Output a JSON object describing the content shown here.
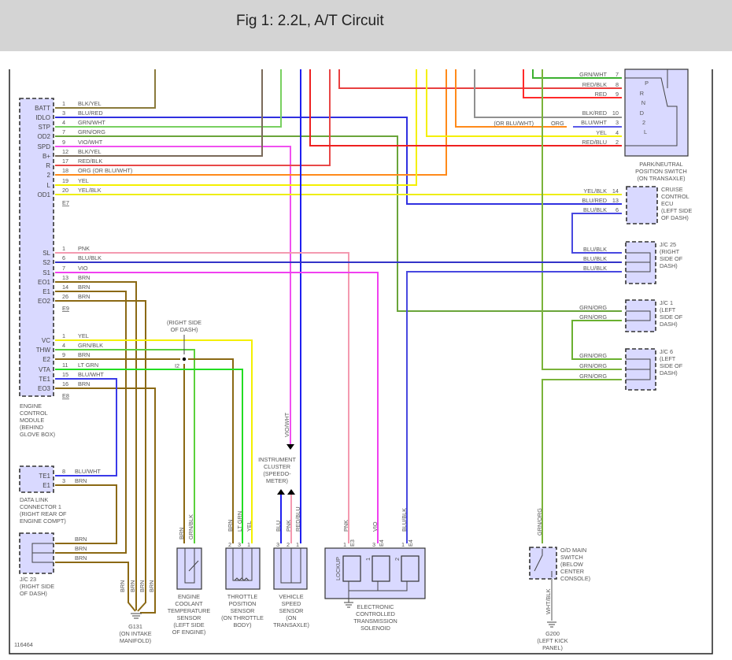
{
  "header": {
    "title": "Fig 1: 2.2L, A/T Circuit"
  },
  "figure_number": "116464",
  "ecu": {
    "label": [
      "ENGINE",
      "CONTROL",
      "MODULE",
      "(BEHIND",
      "GLOVE BOX)"
    ],
    "e7": {
      "connector": "E7",
      "pins": [
        {
          "name": "BATT",
          "pin": "1",
          "wire": "BLK/YEL"
        },
        {
          "name": "IDLO",
          "pin": "3",
          "wire": "BLU/RED"
        },
        {
          "name": "STP",
          "pin": "4",
          "wire": "GRN/WHT"
        },
        {
          "name": "OD2",
          "pin": "7",
          "wire": "GRN/ORG"
        },
        {
          "name": "SPD",
          "pin": "9",
          "wire": "VIO/WHT"
        },
        {
          "name": "B+",
          "pin": "12",
          "wire": "BLK/YEL"
        },
        {
          "name": "R",
          "pin": "17",
          "wire": "RED/BLK"
        },
        {
          "name": "2",
          "pin": "18",
          "wire": "ORG   (OR BLU/WHT)"
        },
        {
          "name": "L",
          "pin": "19",
          "wire": "YEL"
        },
        {
          "name": "OD1",
          "pin": "20",
          "wire": "YEL/BLK"
        }
      ]
    },
    "e9": {
      "connector": "E9",
      "pins": [
        {
          "name": "SL",
          "pin": "1",
          "wire": "PNK"
        },
        {
          "name": "S2",
          "pin": "6",
          "wire": "BLU/BLK"
        },
        {
          "name": "S1",
          "pin": "7",
          "wire": "VIO"
        },
        {
          "name": "EO1",
          "pin": "13",
          "wire": "BRN"
        },
        {
          "name": "E1",
          "pin": "14",
          "wire": "BRN"
        },
        {
          "name": "EO2",
          "pin": "26",
          "wire": "BRN"
        }
      ]
    },
    "e8": {
      "connector": "E8",
      "pins": [
        {
          "name": "VC",
          "pin": "1",
          "wire": "YEL"
        },
        {
          "name": "THW",
          "pin": "4",
          "wire": "GRN/BLK"
        },
        {
          "name": "E2",
          "pin": "9",
          "wire": "BRN"
        },
        {
          "name": "VTA",
          "pin": "11",
          "wire": "LT GRN"
        },
        {
          "name": "TE1",
          "pin": "15",
          "wire": "BLU/WHT"
        },
        {
          "name": "EO3",
          "pin": "16",
          "wire": "BRN"
        }
      ]
    }
  },
  "park_neutral_switch": {
    "label": [
      "PARK/NEUTRAL",
      "POSITION SWITCH",
      "(ON TRANSAXLE)"
    ],
    "pins": [
      {
        "pin": "7",
        "wire": "GRN/WHT"
      },
      {
        "pin": "8",
        "wire": "RED/BLK"
      },
      {
        "pin": "9",
        "wire": "RED"
      },
      {
        "pin": "10",
        "wire": "BLK/RED"
      },
      {
        "pin": "3",
        "wire": "BLU/WHT"
      },
      {
        "pin": "4",
        "wire": "YEL"
      },
      {
        "pin": "2",
        "wire": "RED/BLU"
      }
    ],
    "positions": [
      "P",
      "R",
      "N",
      "D",
      "2",
      "L"
    ],
    "alt_wire_note": "(OR BLU/WHT)",
    "alt_wire": "ORG"
  },
  "cruise_ecu": {
    "label": [
      "CRUISE",
      "CONTROL",
      "ECU",
      "(LEFT SIDE",
      "OF DASH)"
    ],
    "pins": [
      {
        "pin": "14",
        "wire": "YEL/BLK"
      },
      {
        "pin": "13",
        "wire": "BLU/RED"
      },
      {
        "pin": "6",
        "wire": "BLU/BLK"
      }
    ]
  },
  "jc25": {
    "label": [
      "J/C 25",
      "(RIGHT",
      "SIDE OF",
      "DASH)"
    ],
    "wires": [
      "BLU/BLK",
      "BLU/BLK",
      "BLU/BLK"
    ]
  },
  "jc1": {
    "label": [
      "J/C 1",
      "(LEFT",
      "SIDE OF",
      "DASH)"
    ],
    "wires": [
      "GRN/ORG",
      "GRN/ORG"
    ]
  },
  "jc6": {
    "label": [
      "J/C 6",
      "(LEFT",
      "SIDE OF",
      "DASH)"
    ],
    "wires": [
      "GRN/ORG",
      "GRN/ORG",
      "GRN/ORG"
    ]
  },
  "splice_i2": {
    "label": [
      "(RIGHT SIDE",
      "OF DASH)"
    ],
    "id": "I2"
  },
  "dlc1": {
    "label": [
      "DATA LINK",
      "CONNECTOR 1",
      "(RIGHT REAR OF",
      "ENGINE COMPT)"
    ],
    "pins": [
      {
        "name": "TE1",
        "pin": "8",
        "wire": "BLU/WHT"
      },
      {
        "name": "E1",
        "pin": "3",
        "wire": "BRN"
      }
    ]
  },
  "jc23": {
    "label": [
      "J/C 23",
      "(RIGHT SIDE",
      "OF DASH)"
    ],
    "wires": [
      "BRN",
      "BRN",
      "BRN"
    ]
  },
  "g131": {
    "ground_wires": [
      "BRN",
      "BRN",
      "BRN",
      "BRN"
    ],
    "label": [
      "G131",
      "(ON INTAKE",
      "MANIFOLD)"
    ]
  },
  "ect_sensor": {
    "wires": [
      "BRN",
      "GRN/BLK"
    ],
    "label": [
      "ENGINE",
      "COOLANT",
      "TEMPERATURE",
      "SENSOR",
      "(LEFT SIDE",
      "OF ENGINE)"
    ]
  },
  "tps": {
    "pins": [
      "2",
      "3",
      "1"
    ],
    "wires": [
      "BRN",
      "LT GRN",
      "YEL"
    ],
    "label": [
      "THROTTLE",
      "POSITION",
      "SENSOR",
      "(ON THROTTLE",
      "BODY)"
    ]
  },
  "vss": {
    "pins": [
      "3",
      "2",
      "1"
    ],
    "wires": [
      "BLU",
      "PNK",
      "RED/BLU"
    ],
    "label": [
      "VEHICLE",
      "SPEED",
      "SENSOR",
      "(ON",
      "TRANSAXLE)"
    ]
  },
  "instrument_cluster": {
    "wire": "VIO/WHT",
    "label": [
      "INSTRUMENT",
      "CLUSTER",
      "(SPEEDO-",
      "METER)"
    ]
  },
  "solenoid": {
    "pins": [
      {
        "pin": "1",
        "conn": "E3",
        "wire": "PNK"
      },
      {
        "pin": "3",
        "conn": "E4",
        "wire": "VIO"
      },
      {
        "pin": "1",
        "conn": "E4",
        "wire": "BLU/BLK"
      }
    ],
    "coils": [
      "LOCKUP",
      "1",
      "2"
    ],
    "label": [
      "ELECTRONIC",
      "CONTROLLED",
      "TRANSMISSION",
      "SOLENOID"
    ]
  },
  "od_switch": {
    "wire_in": "GRN/ORG",
    "wire_out": "WHT/BLK",
    "label": [
      "O/D MAIN",
      "SWITCH",
      "(BELOW",
      "CENTER",
      "CONSOLE)"
    ]
  },
  "g200": {
    "label": [
      "G200",
      "(LEFT KICK",
      "PANEL)"
    ]
  },
  "colors": {
    "header_bg": "#d4d4d4",
    "component_fill": "#d9d9ff"
  }
}
